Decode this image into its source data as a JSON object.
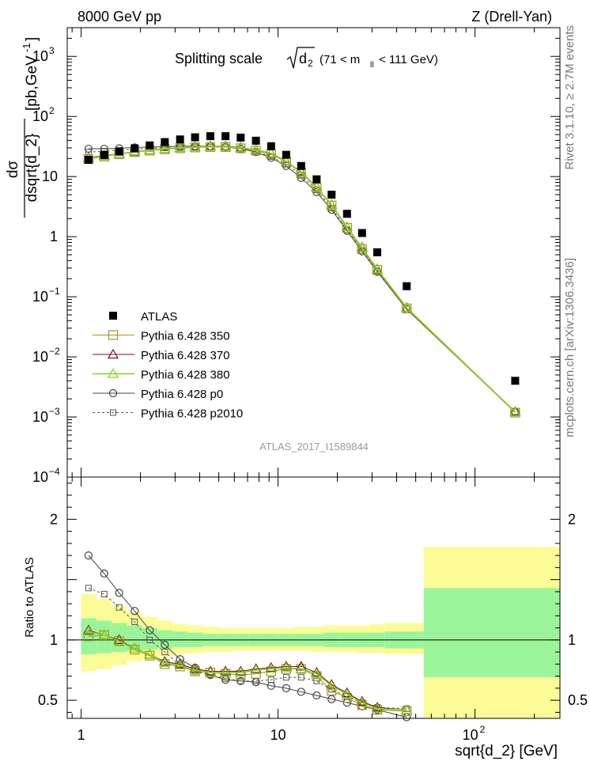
{
  "header": {
    "left": "8000 GeV pp",
    "right": "Z (Drell-Yan)"
  },
  "side_labels": {
    "rivet": "Rivet 3.1.10, ≥ 2.7M events",
    "mcplots": "mcplots.cern.ch [arXiv:1306.3436]"
  },
  "chart_data": {
    "type": "line",
    "title": "Splitting scale √d₂ (71 < m_ll < 111 GeV)",
    "title_parts": {
      "prefix": "Splitting scale",
      "var": "d",
      "var_sub": "2",
      "range_prefix": "(71 < m",
      "range_sub": "ll",
      "range_suffix": "< 111 GeV)"
    },
    "ylabel_parts": {
      "num": "dσ",
      "den": "dsqrt{d_2}",
      "unit": "[pb,GeV",
      "unit_sup": "-1",
      "unit_end": "]"
    },
    "xlabel": "sqrt{d_2} [GeV]",
    "ratio_ylabel": "Ratio to ATLAS",
    "watermark": "ATLAS_2017_I1589844",
    "x_scale": "log",
    "y_scale": "log",
    "xlim": [
      0.85,
      270
    ],
    "ylim": [
      0.0001,
      3000
    ],
    "ratio_ylim": [
      0.35,
      2.35
    ],
    "x_ticks": [
      {
        "v": 1,
        "label": "1",
        "sup": ""
      },
      {
        "v": 10,
        "label": "10",
        "sup": ""
      },
      {
        "v": 100,
        "label": "10",
        "sup": "2"
      }
    ],
    "y_ticks": [
      {
        "v": 1000,
        "label": "10",
        "sup": "3"
      },
      {
        "v": 100,
        "label": "10",
        "sup": "2"
      },
      {
        "v": 10,
        "label": "10",
        "sup": ""
      },
      {
        "v": 1,
        "label": "1",
        "sup": ""
      },
      {
        "v": 0.1,
        "label": "10",
        "sup": "−1"
      },
      {
        "v": 0.01,
        "label": "10",
        "sup": "−2"
      },
      {
        "v": 0.001,
        "label": "10",
        "sup": "−3"
      },
      {
        "v": 0.0001,
        "label": "10",
        "sup": "−4"
      }
    ],
    "ratio_ticks": [
      {
        "v": 2,
        "label": "2"
      },
      {
        "v": 1,
        "label": "1"
      },
      {
        "v": 0.5,
        "label": "0.5"
      }
    ],
    "x": [
      1.09,
      1.31,
      1.56,
      1.87,
      2.23,
      2.66,
      3.18,
      3.79,
      4.53,
      5.41,
      6.46,
      7.72,
      9.22,
      11.0,
      13.1,
      15.7,
      18.7,
      22.4,
      26.7,
      31.9,
      45.0,
      160.0
    ],
    "bands": [
      {
        "x0": 1.0,
        "x1": 1.2,
        "y1lo": 0.88,
        "y1hi": 1.18,
        "y2lo": 0.74,
        "y2hi": 1.38
      },
      {
        "x0": 1.2,
        "x1": 1.43,
        "y1lo": 0.89,
        "y1hi": 1.16,
        "y2lo": 0.76,
        "y2hi": 1.34
      },
      {
        "x0": 1.43,
        "x1": 1.71,
        "y1lo": 0.9,
        "y1hi": 1.14,
        "y2lo": 0.79,
        "y2hi": 1.28
      },
      {
        "x0": 1.71,
        "x1": 2.04,
        "y1lo": 0.91,
        "y1hi": 1.12,
        "y2lo": 0.82,
        "y2hi": 1.23
      },
      {
        "x0": 2.04,
        "x1": 2.44,
        "y1lo": 0.92,
        "y1hi": 1.1,
        "y2lo": 0.84,
        "y2hi": 1.19
      },
      {
        "x0": 2.44,
        "x1": 2.91,
        "y1lo": 0.93,
        "y1hi": 1.08,
        "y2lo": 0.86,
        "y2hi": 1.16
      },
      {
        "x0": 2.91,
        "x1": 3.48,
        "y1lo": 0.94,
        "y1hi": 1.07,
        "y2lo": 0.88,
        "y2hi": 1.13
      },
      {
        "x0": 3.48,
        "x1": 4.16,
        "y1lo": 0.94,
        "y1hi": 1.06,
        "y2lo": 0.89,
        "y2hi": 1.12
      },
      {
        "x0": 4.16,
        "x1": 4.96,
        "y1lo": 0.95,
        "y1hi": 1.05,
        "y2lo": 0.9,
        "y2hi": 1.11
      },
      {
        "x0": 4.96,
        "x1": 5.93,
        "y1lo": 0.95,
        "y1hi": 1.05,
        "y2lo": 0.9,
        "y2hi": 1.1
      },
      {
        "x0": 5.93,
        "x1": 7.08,
        "y1lo": 0.95,
        "y1hi": 1.05,
        "y2lo": 0.91,
        "y2hi": 1.1
      },
      {
        "x0": 7.08,
        "x1": 8.45,
        "y1lo": 0.95,
        "y1hi": 1.05,
        "y2lo": 0.91,
        "y2hi": 1.1
      },
      {
        "x0": 8.45,
        "x1": 10.1,
        "y1lo": 0.95,
        "y1hi": 1.05,
        "y2lo": 0.91,
        "y2hi": 1.1
      },
      {
        "x0": 10.1,
        "x1": 12.0,
        "y1lo": 0.95,
        "y1hi": 1.05,
        "y2lo": 0.91,
        "y2hi": 1.1
      },
      {
        "x0": 12.0,
        "x1": 14.4,
        "y1lo": 0.95,
        "y1hi": 1.05,
        "y2lo": 0.91,
        "y2hi": 1.11
      },
      {
        "x0": 14.4,
        "x1": 17.1,
        "y1lo": 0.95,
        "y1hi": 1.05,
        "y2lo": 0.9,
        "y2hi": 1.11
      },
      {
        "x0": 17.1,
        "x1": 20.5,
        "y1lo": 0.94,
        "y1hi": 1.06,
        "y2lo": 0.9,
        "y2hi": 1.12
      },
      {
        "x0": 20.5,
        "x1": 24.4,
        "y1lo": 0.94,
        "y1hi": 1.06,
        "y2lo": 0.9,
        "y2hi": 1.12
      },
      {
        "x0": 24.4,
        "x1": 29.2,
        "y1lo": 0.94,
        "y1hi": 1.06,
        "y2lo": 0.89,
        "y2hi": 1.12
      },
      {
        "x0": 29.2,
        "x1": 34.9,
        "y1lo": 0.94,
        "y1hi": 1.06,
        "y2lo": 0.89,
        "y2hi": 1.13
      },
      {
        "x0": 34.9,
        "x1": 55.0,
        "y1lo": 0.93,
        "y1hi": 1.07,
        "y2lo": 0.88,
        "y2hi": 1.14
      },
      {
        "x0": 55.0,
        "x1": 270.0,
        "y1lo": 0.69,
        "y1hi": 1.43,
        "y2lo": 0.35,
        "y2hi": 1.77
      }
    ],
    "series": [
      {
        "name": "ATLAS",
        "color": "#000000",
        "marker": "filled-square",
        "dashed": false,
        "values": [
          19.0,
          23.0,
          26.0,
          29.5,
          33.0,
          37.5,
          41.5,
          45.0,
          47.0,
          47.0,
          44.5,
          39.5,
          32.0,
          23.0,
          15.0,
          9.0,
          5.0,
          2.4,
          1.15,
          0.55,
          0.15,
          0.004
        ],
        "ratio": []
      },
      {
        "name": "Pythia 6.428 350",
        "color": "#a5922a",
        "marker": "open-square",
        "dashed": false,
        "values": [
          19.5,
          21.5,
          23.5,
          25.5,
          27.0,
          28.5,
          29.5,
          30.5,
          31.0,
          31.0,
          29.5,
          27.0,
          23.5,
          17.5,
          11.5,
          6.5,
          3.3,
          1.4,
          0.62,
          0.28,
          0.064,
          0.00118
        ],
        "ratio": [
          1.03,
          1.04,
          0.99,
          0.92,
          0.87,
          0.8,
          0.78,
          0.74,
          0.73,
          0.72,
          0.71,
          0.72,
          0.74,
          0.76,
          0.76,
          0.7,
          0.58,
          0.52,
          0.46,
          0.42,
          0.41
        ]
      },
      {
        "name": "Pythia 6.428 370",
        "color": "#7a0b2a",
        "marker": "open-triangle",
        "dashed": false,
        "values": [
          20.5,
          22.5,
          24.0,
          26.0,
          27.5,
          29.0,
          30.0,
          31.0,
          32.0,
          32.0,
          30.5,
          28.0,
          24.5,
          18.0,
          12.0,
          6.7,
          3.4,
          1.45,
          0.66,
          0.29,
          0.066,
          0.00122
        ],
        "ratio": [
          1.08,
          1.04,
          1.0,
          0.93,
          0.88,
          0.82,
          0.8,
          0.76,
          0.74,
          0.74,
          0.74,
          0.76,
          0.77,
          0.78,
          0.78,
          0.73,
          0.63,
          0.56,
          0.49,
          0.44,
          0.42
        ]
      },
      {
        "name": "Pythia 6.428 380",
        "color": "#86d11c",
        "marker": "open-triangle",
        "dashed": false,
        "values": [
          20.0,
          22.0,
          24.0,
          25.5,
          27.5,
          29.0,
          30.0,
          31.0,
          31.5,
          31.5,
          30.0,
          28.0,
          24.5,
          18.0,
          11.8,
          6.6,
          3.4,
          1.45,
          0.65,
          0.29,
          0.066,
          0.0012
        ],
        "ratio": [
          1.07,
          1.04,
          0.99,
          0.93,
          0.88,
          0.81,
          0.79,
          0.75,
          0.73,
          0.73,
          0.73,
          0.75,
          0.76,
          0.77,
          0.76,
          0.72,
          0.62,
          0.55,
          0.48,
          0.43,
          0.42
        ]
      },
      {
        "name": "Pythia 6.428 p0",
        "color": "#444444",
        "marker": "open-circle",
        "dashed": false,
        "values": [
          29.0,
          29.0,
          29.5,
          30.5,
          31.0,
          31.5,
          32.0,
          32.0,
          32.0,
          31.0,
          29.0,
          25.5,
          20.5,
          15.0,
          9.5,
          5.5,
          2.8,
          1.25,
          0.57,
          0.26,
          0.062,
          0.0012
        ],
        "ratio": [
          1.7,
          1.55,
          1.39,
          1.24,
          1.08,
          0.96,
          0.84,
          0.77,
          0.71,
          0.67,
          0.66,
          0.65,
          0.62,
          0.6,
          0.57,
          0.54,
          0.51,
          0.48,
          0.45,
          0.42,
          0.36
        ]
      },
      {
        "name": "Pythia 6.428 p2010",
        "color": "#555555",
        "marker": "open-square-small",
        "dashed": true,
        "values": [
          25.5,
          26.5,
          27.5,
          28.5,
          29.5,
          30.0,
          30.5,
          31.0,
          31.0,
          31.0,
          29.0,
          26.0,
          21.5,
          16.0,
          10.5,
          6.0,
          3.0,
          1.3,
          0.59,
          0.27,
          0.064,
          0.00122
        ],
        "ratio": [
          1.43,
          1.38,
          1.27,
          1.15,
          1.0,
          0.9,
          0.79,
          0.74,
          0.71,
          0.68,
          0.66,
          0.66,
          0.67,
          0.69,
          0.69,
          0.66,
          0.59,
          0.53,
          0.48,
          0.44,
          0.43
        ]
      }
    ],
    "legend": [
      "ATLAS",
      "Pythia 6.428 350",
      "Pythia 6.428 370",
      "Pythia 6.428 380",
      "Pythia 6.428 p0",
      "Pythia 6.428 p2010"
    ],
    "legend_position": "middle-left",
    "band_colors": {
      "inner": "#9af59a",
      "outer": "#fcfc96"
    }
  }
}
